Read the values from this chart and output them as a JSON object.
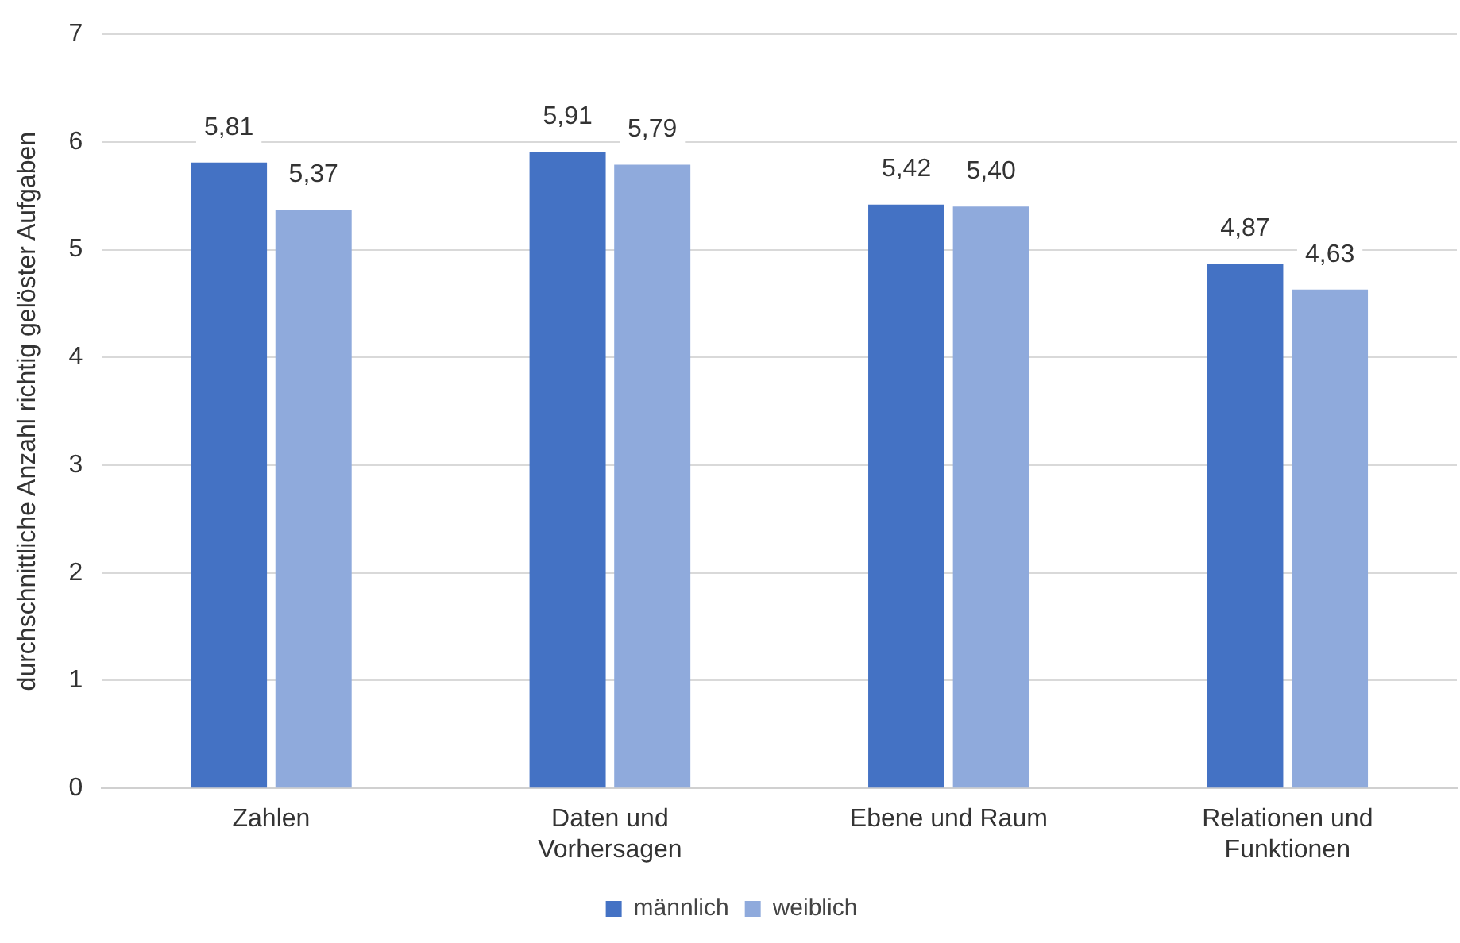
{
  "chart_data": {
    "type": "bar",
    "ylabel": "durchschnittliche Anzahl richtig gelöster Aufgaben",
    "categories": [
      "Zahlen",
      "Daten und Vorhersagen",
      "Ebene und Raum",
      "Relationen und Funktionen"
    ],
    "series": [
      {
        "name": "männlich",
        "color": "#4472c4",
        "values": [
          5.81,
          5.91,
          5.42,
          4.87
        ],
        "value_labels": [
          "5,81",
          "5,91",
          "5,42",
          "4,87"
        ]
      },
      {
        "name": "weiblich",
        "color": "#8faadc",
        "values": [
          5.37,
          5.79,
          5.4,
          4.63
        ],
        "value_labels": [
          "5,37",
          "5,79",
          "5,40",
          "4,63"
        ]
      }
    ],
    "ylim": [
      0,
      7
    ],
    "yticks": [
      0,
      1,
      2,
      3,
      4,
      5,
      6,
      7
    ],
    "grid": "y",
    "legend": "bottom"
  }
}
